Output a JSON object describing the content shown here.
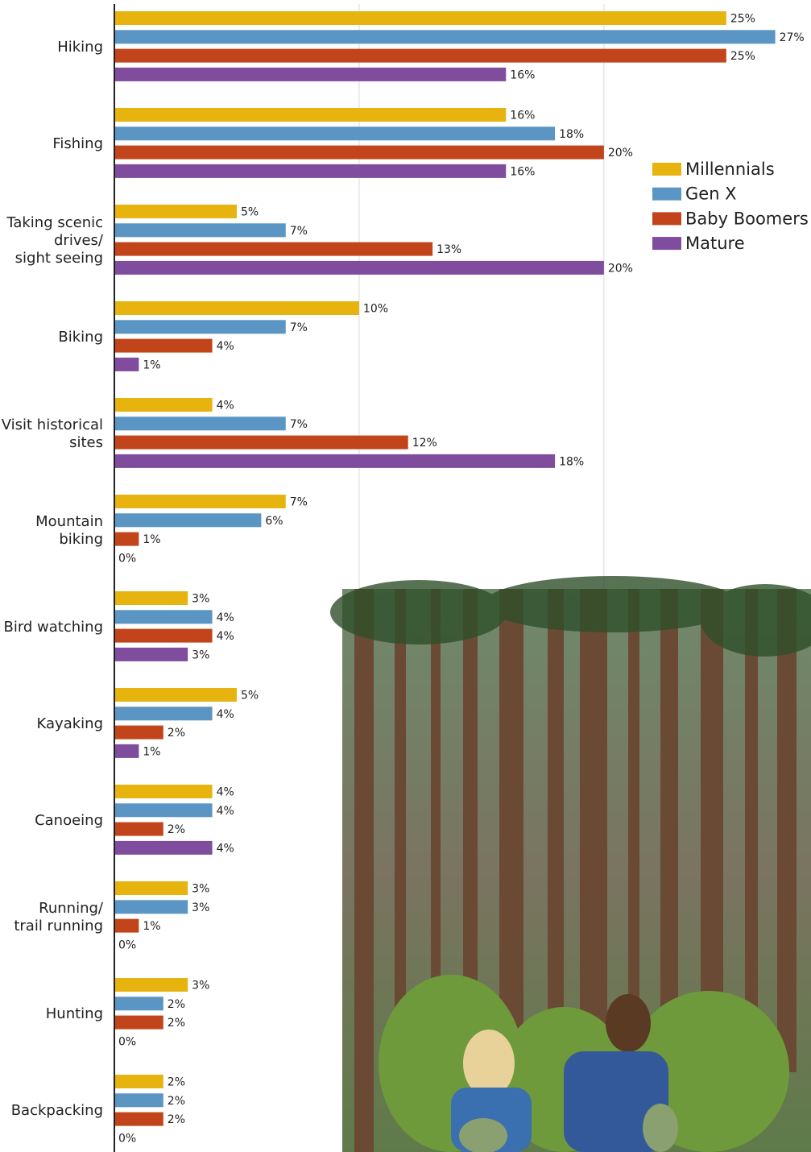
{
  "chart_data": {
    "type": "bar",
    "orientation": "horizontal",
    "categories": [
      [
        "Hiking"
      ],
      [
        "Fishing"
      ],
      [
        "Taking scenic",
        "drives/",
        "sight seeing"
      ],
      [
        "Biking"
      ],
      [
        "Visit historical",
        "sites"
      ],
      [
        "Mountain",
        "biking"
      ],
      [
        "Bird watching"
      ],
      [
        "Kayaking"
      ],
      [
        "Canoeing"
      ],
      [
        "Running/",
        "trail running"
      ],
      [
        "Hunting"
      ],
      [
        "Backpacking"
      ]
    ],
    "series": [
      {
        "name": "Millennials",
        "color": "#e6b30f",
        "values": [
          25,
          16,
          5,
          10,
          4,
          7,
          3,
          5,
          4,
          3,
          3,
          2
        ],
        "value_labels": [
          "25%",
          "16%",
          "5%",
          "10%",
          "4%",
          "7%",
          "3%",
          "5%",
          "4%",
          "3%",
          "3%",
          "2%"
        ]
      },
      {
        "name": "Gen X",
        "color": "#5b95c3",
        "values": [
          27,
          18,
          7,
          7,
          7,
          6,
          4,
          4,
          4,
          3,
          2,
          2
        ],
        "value_labels": [
          "27%",
          "18%",
          "7%",
          "7%",
          "7%",
          "6%",
          "4%",
          "4%",
          "4%",
          "3%",
          "2%",
          "2%"
        ]
      },
      {
        "name": "Baby Boomers",
        "color": "#c2441b",
        "values": [
          25,
          20,
          13,
          4,
          12,
          1,
          4,
          2,
          2,
          1,
          2,
          2
        ],
        "value_labels": [
          "25%",
          "20%",
          "13%",
          "4%",
          "12%",
          "1%",
          "4%",
          "2%",
          "2%",
          "1%",
          "2%",
          "2%"
        ]
      },
      {
        "name": "Mature",
        "color": "#7f4c9e",
        "values": [
          16,
          16,
          20,
          1,
          18,
          0,
          3,
          1,
          4,
          0,
          0,
          0
        ],
        "value_labels": [
          "16%",
          "16%",
          "20%",
          "1%",
          "18%",
          "0%",
          "3%",
          "1%",
          "4%",
          "0%",
          "0%",
          "0%"
        ]
      }
    ],
    "xlim": [
      0,
      28
    ],
    "xticks": [
      0,
      10,
      20
    ],
    "grid": true,
    "legend": "right"
  }
}
